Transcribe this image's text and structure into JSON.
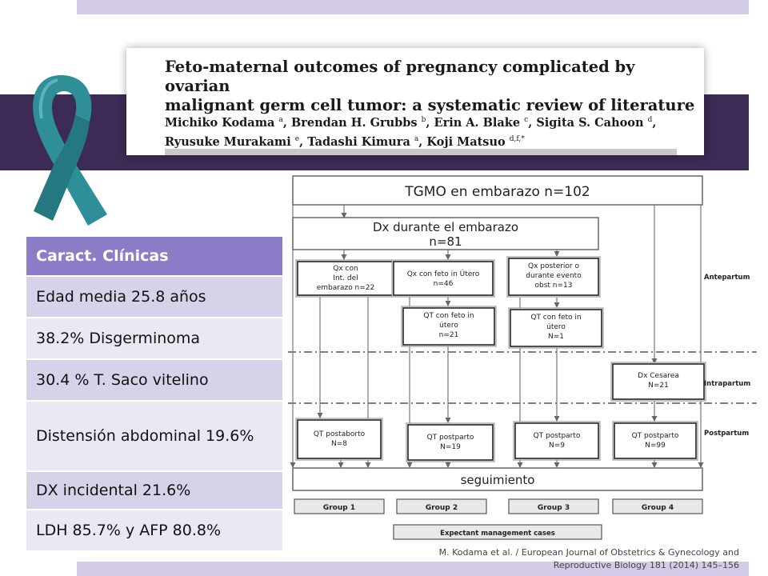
{
  "paper": {
    "title_line1": "Feto-maternal outcomes of pregnancy complicated by ovarian",
    "title_line2": "malignant germ cell tumor: a systematic review of literature",
    "authors_line1": [
      {
        "name": "Michiko Kodama",
        "sup": "a"
      },
      {
        "name": "Brendan H. Grubbs",
        "sup": "b"
      },
      {
        "name": "Erin A. Blake",
        "sup": "c"
      },
      {
        "name": "Sigita S. Cahoon",
        "sup": "d"
      }
    ],
    "authors_line2": [
      {
        "name": "Ryusuke Murakami",
        "sup": "e"
      },
      {
        "name": "Tadashi Kimura",
        "sup": "a"
      },
      {
        "name": "Koji Matsuo",
        "sup": "d,f,*"
      }
    ]
  },
  "clinical_table": {
    "header": "Caract. Clínicas",
    "rows": [
      "Edad media 25.8 años",
      "38.2% Disgerminoma",
      "30.4 % T. Saco vitelino",
      "Distensión abdominal 19.6%",
      "DX incidental 21.6%",
      "LDH  85.7% y AFP 80.8%"
    ]
  },
  "flowchart": {
    "top": "TGMO en embarazo n=102",
    "dx_line1": "Dx durante el embarazo",
    "dx_line2": "n=81",
    "qx_int": [
      "Qx con",
      "Int. del",
      "embarazo n=22"
    ],
    "qx_feto": [
      "Qx con feto in Útero",
      "n=46"
    ],
    "qx_posterior": [
      "Qx posterior o",
      "durante evento",
      "obst n=13"
    ],
    "qt_feto_21": [
      "QT con feto in",
      "útero",
      "n=21"
    ],
    "qt_feto_1": [
      "QT con feto in",
      "útero",
      "N=1"
    ],
    "dx_cesarea": [
      "Dx Cesarea",
      "N=21"
    ],
    "qt_postaborto": [
      "QT postaborto",
      "N=8"
    ],
    "qt_postparto_19": [
      "QT postparto",
      "N=19"
    ],
    "qt_postparto_9": [
      "QT postparto",
      "N=9"
    ],
    "qt_postparto_99": [
      "QT postparto",
      "N=99"
    ],
    "seguimiento": "seguimiento",
    "phases": [
      "Antepartum",
      "Intrapartum",
      "Postpartum"
    ],
    "groups": [
      "Group 1",
      "Group 2",
      "Group 3",
      "Group 4"
    ],
    "expectant": "Expectant management cases"
  },
  "citation": {
    "line1": "M. Kodama et al. / European Journal of Obstetrics & Gynecology and",
    "line2": "Reproductive Biology 181 (2014) 145–156"
  },
  "colors": {
    "lavender": "#d3cbe7",
    "dark_band": "#3b2b55",
    "table_header": "#8d7cc7",
    "ribbon": "#2f8f98"
  }
}
